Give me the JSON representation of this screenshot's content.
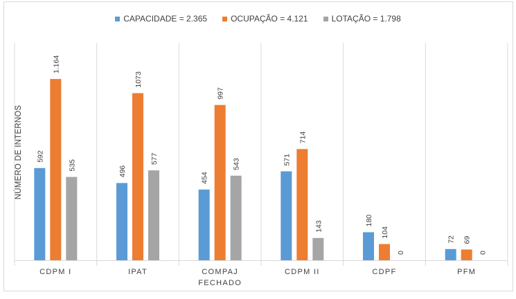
{
  "chart_data": {
    "type": "bar",
    "title": "",
    "ylabel": "NÚMERO DE INTERNOS",
    "xlabel": "",
    "categories": [
      [
        "CDPM I"
      ],
      [
        "IPAT"
      ],
      [
        "COMPAJ",
        "FECHADO"
      ],
      [
        "CDPM II"
      ],
      [
        "CDPF"
      ],
      [
        "PFM"
      ]
    ],
    "series": [
      {
        "name": "CAPACIDADE = 2.365",
        "color": "#5b9bd5",
        "values": [
          592,
          496,
          454,
          571,
          180,
          72
        ],
        "labels": [
          "592",
          "496",
          "454",
          "571",
          "180",
          "72"
        ]
      },
      {
        "name": "OCUPAÇÃO = 4.121",
        "color": "#ed7d31",
        "values": [
          1164,
          1073,
          997,
          714,
          104,
          69
        ],
        "labels": [
          "1.164",
          "1073",
          "997",
          "714",
          "104",
          "69"
        ]
      },
      {
        "name": "LOTAÇÃO = 1.798",
        "color": "#a5a5a5",
        "values": [
          535,
          577,
          543,
          143,
          0,
          0
        ],
        "labels": [
          "535",
          "577",
          "543",
          "143",
          "0",
          "0"
        ]
      }
    ],
    "ylim": [
      0,
      1200
    ],
    "grid": "vertical category separators",
    "legend": "top-center",
    "data_labels": "rotated, above bars"
  }
}
